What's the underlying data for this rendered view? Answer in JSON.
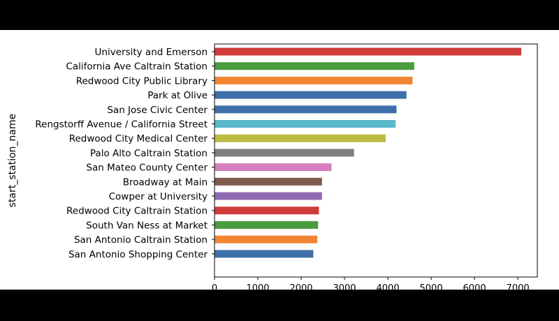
{
  "chart_data": {
    "type": "bar",
    "orientation": "horizontal",
    "title": "",
    "xlabel": "",
    "ylabel": "start_station_name",
    "xlim": [
      0,
      7450
    ],
    "xticks": [
      0,
      1000,
      2000,
      3000,
      4000,
      5000,
      6000,
      7000
    ],
    "grid": false,
    "categories": [
      "University and Emerson",
      "California Ave Caltrain Station",
      "Redwood City Public Library",
      "Park at Olive",
      "San Jose Civic Center",
      "Rengstorff Avenue / California Street",
      "Redwood City Medical Center",
      "Palo Alto Caltrain Station",
      "San Mateo County Center",
      "Broadway at Main",
      "Cowper at University",
      "Redwood City Caltrain Station",
      "South Van Ness at Market",
      "San Antonio Caltrain Station",
      "San Antonio Shopping Center"
    ],
    "values": [
      7080,
      4610,
      4570,
      4430,
      4200,
      4180,
      3950,
      3220,
      2700,
      2480,
      2480,
      2410,
      2390,
      2370,
      2280
    ],
    "colors": [
      "#cf3c39",
      "#4a9d3f",
      "#f28534",
      "#3e6fa8",
      "#3e6fa8",
      "#5ab8cb",
      "#bcbb44",
      "#7f7f7f",
      "#d67fbe",
      "#7f594c",
      "#8f6bb3",
      "#cf3c39",
      "#4a9d3f",
      "#f28534",
      "#3e6fa8"
    ]
  }
}
